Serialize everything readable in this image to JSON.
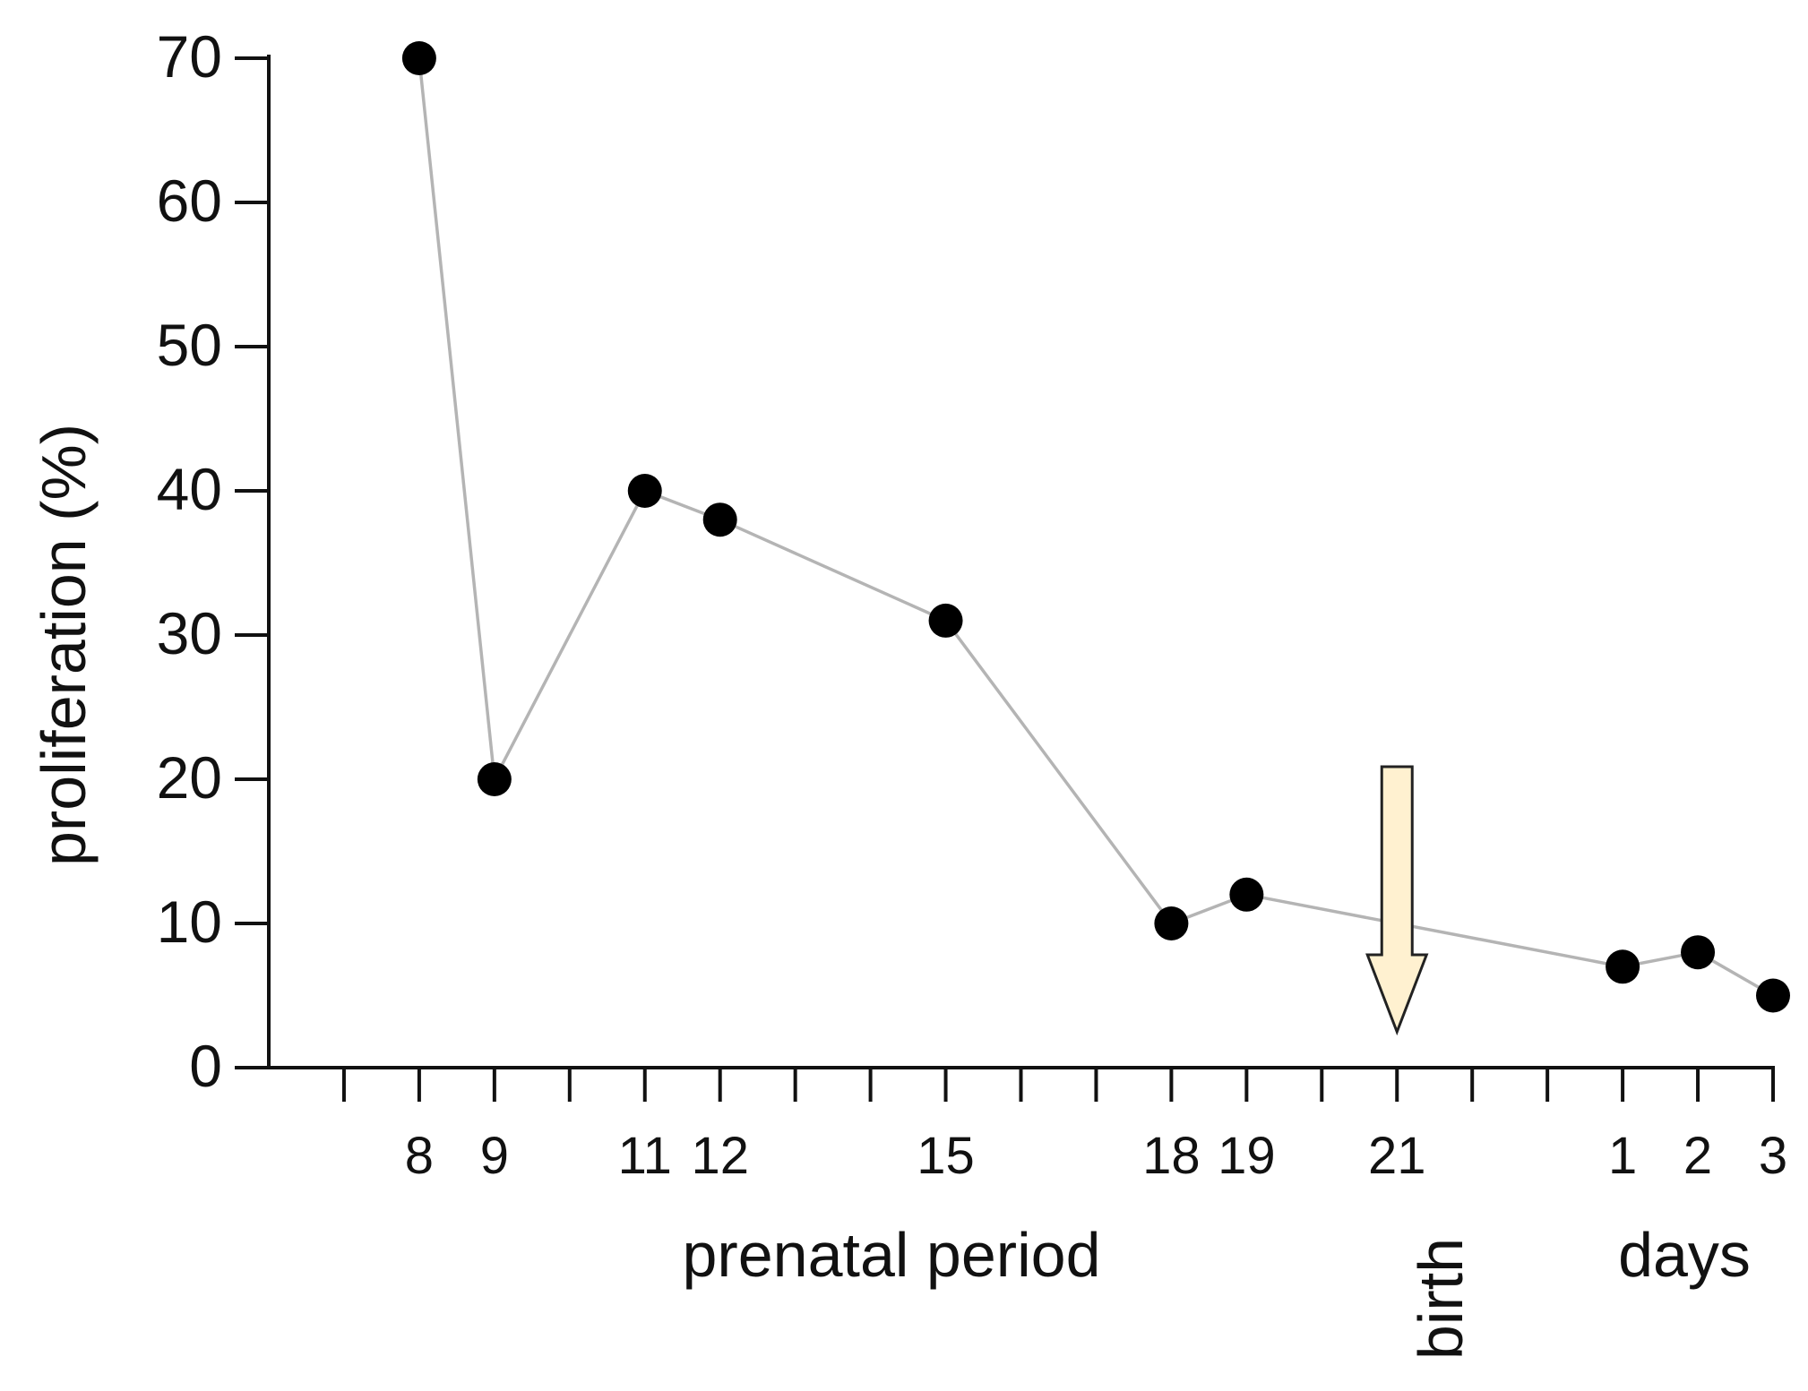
{
  "chart_data": {
    "type": "line",
    "title": "",
    "ylabel": "proliferation (%)",
    "xlabel_prenatal": "prenatal period",
    "xlabel_birth": "birth",
    "xlabel_postnatal": "days",
    "ylim": [
      0,
      70
    ],
    "yticks": [
      0,
      10,
      20,
      30,
      40,
      50,
      60,
      70
    ],
    "series": [
      {
        "name": "proliferation",
        "points": [
          {
            "pos": 8,
            "label": "8",
            "value": 70
          },
          {
            "pos": 9,
            "label": "9",
            "value": 20
          },
          {
            "pos": 11,
            "label": "11",
            "value": 40
          },
          {
            "pos": 12,
            "label": "12",
            "value": 38
          },
          {
            "pos": 15,
            "label": "15",
            "value": 31
          },
          {
            "pos": 18,
            "label": "18",
            "value": 10
          },
          {
            "pos": 19,
            "label": "19",
            "value": 12
          },
          {
            "pos": 24,
            "label": "1",
            "value": 7
          },
          {
            "pos": 25,
            "label": "2",
            "value": 8
          },
          {
            "pos": 26,
            "label": "3",
            "value": 5
          }
        ]
      }
    ],
    "extra_tick_labels": [
      {
        "pos": 21,
        "label": "21"
      }
    ],
    "xrange": [
      6,
      26
    ],
    "minor_ticks": [
      7,
      8,
      9,
      10,
      11,
      12,
      13,
      14,
      15,
      16,
      17,
      18,
      19,
      20,
      21,
      22,
      23,
      24,
      25,
      26
    ],
    "birth_marker_pos": 21,
    "colors": {
      "line": "#b4b4b4",
      "marker": "#000000",
      "axis": "#111111",
      "arrow_fill": "#fff1d0",
      "arrow_stroke": "#222222"
    }
  }
}
